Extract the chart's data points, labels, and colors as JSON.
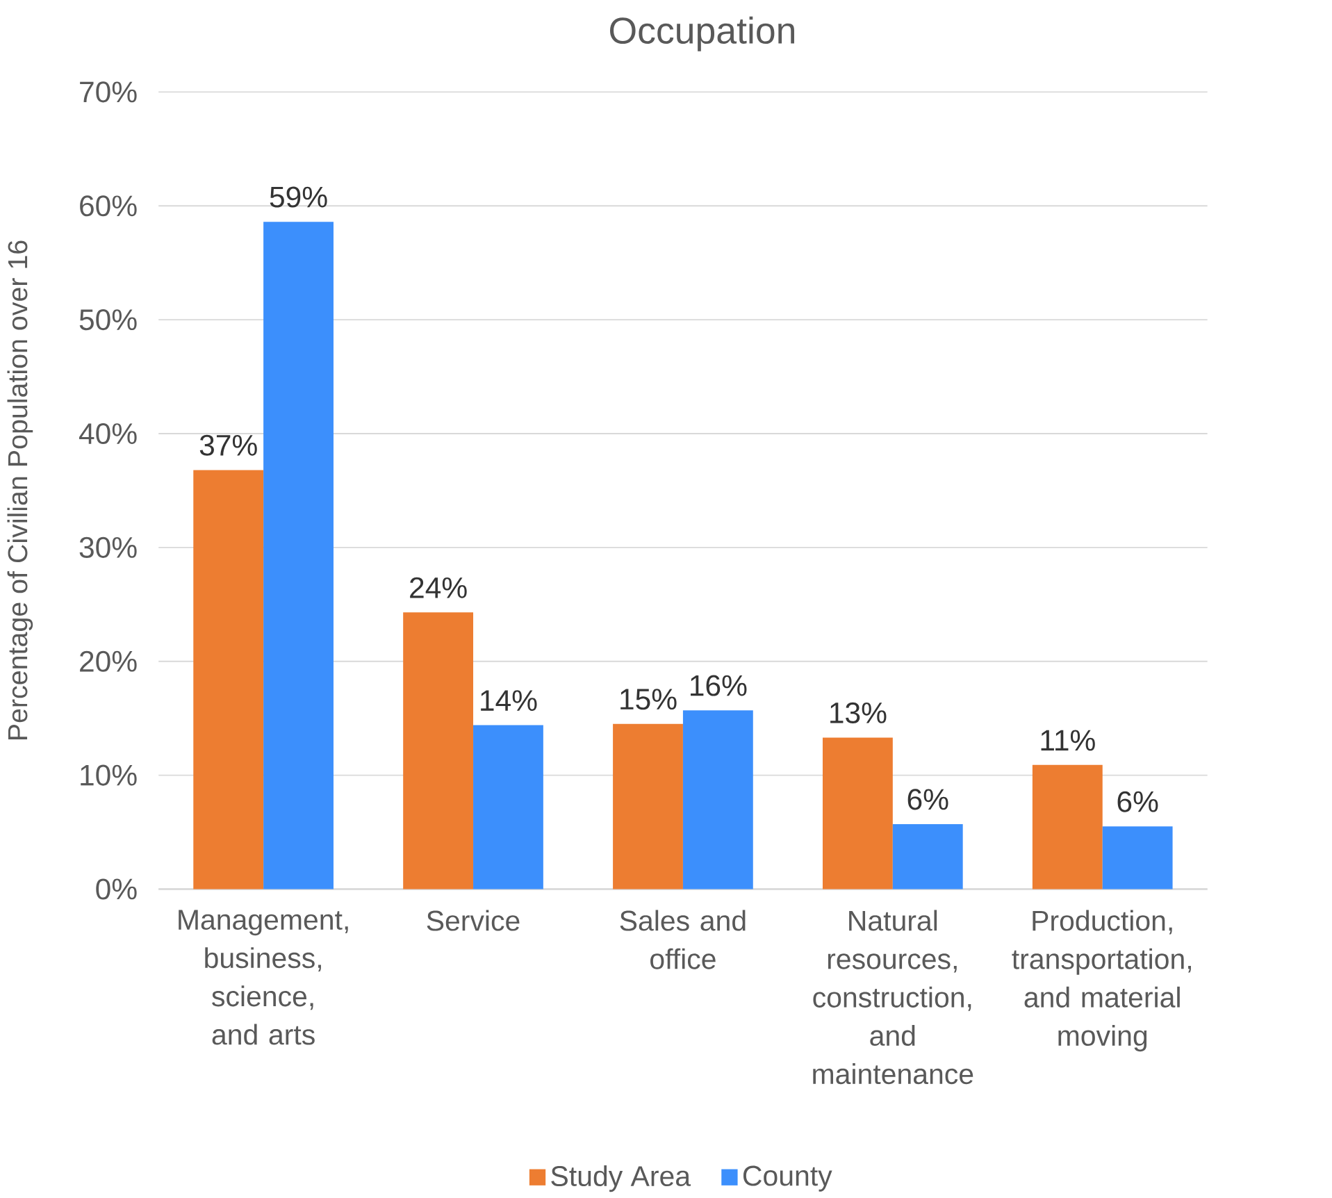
{
  "chart_data": {
    "type": "bar",
    "title": "Occupation",
    "ylabel": "Percentage of Civilian Population over 16",
    "categories": [
      "Management, business, science, and arts",
      "Service",
      "Sales and office",
      "Natural resources, construction, and maintenance",
      "Production, transportation, and material moving"
    ],
    "series": [
      {
        "name": "Study Area",
        "color": "#ed7d31",
        "values": [
          36.8,
          24.3,
          14.5,
          13.3,
          10.9
        ],
        "value_labels": [
          "37%",
          "24%",
          "15%",
          "13%",
          "11%"
        ]
      },
      {
        "name": "County",
        "color": "#3c8ffc",
        "values": [
          58.6,
          14.4,
          15.7,
          5.7,
          5.5
        ],
        "value_labels": [
          "59%",
          "14%",
          "16%",
          "6%",
          "6%"
        ]
      }
    ],
    "ylim": [
      0,
      70
    ],
    "yticks": [
      {
        "value": 0,
        "label": "0%"
      },
      {
        "value": 10,
        "label": "10%"
      },
      {
        "value": 20,
        "label": "20%"
      },
      {
        "value": 30,
        "label": "30%"
      },
      {
        "value": 40,
        "label": "40%"
      },
      {
        "value": 50,
        "label": "50%"
      },
      {
        "value": 60,
        "label": "60%"
      },
      {
        "value": 70,
        "label": "70%"
      }
    ],
    "grid": "y",
    "legend": "bottom"
  }
}
